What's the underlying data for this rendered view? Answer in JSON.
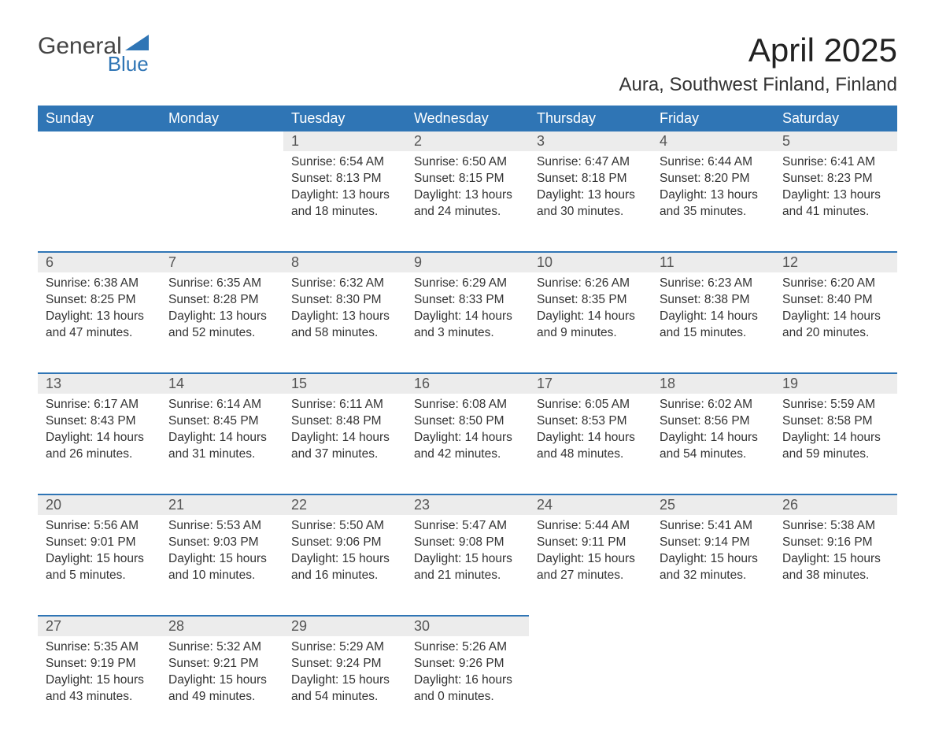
{
  "logo": {
    "text1": "General",
    "text2": "Blue"
  },
  "title": "April 2025",
  "location": "Aura, Southwest Finland, Finland",
  "colors": {
    "header_bg": "#2f75b5",
    "header_text": "#ffffff",
    "daynum_bg": "#ececec",
    "row_border": "#2f75b5",
    "body_text": "#333333",
    "logo_blue": "#2f75b5"
  },
  "day_headers": [
    "Sunday",
    "Monday",
    "Tuesday",
    "Wednesday",
    "Thursday",
    "Friday",
    "Saturday"
  ],
  "weeks": [
    [
      {
        "n": "",
        "lines": []
      },
      {
        "n": "",
        "lines": []
      },
      {
        "n": "1",
        "lines": [
          "Sunrise: 6:54 AM",
          "Sunset: 8:13 PM",
          "Daylight: 13 hours",
          "and 18 minutes."
        ]
      },
      {
        "n": "2",
        "lines": [
          "Sunrise: 6:50 AM",
          "Sunset: 8:15 PM",
          "Daylight: 13 hours",
          "and 24 minutes."
        ]
      },
      {
        "n": "3",
        "lines": [
          "Sunrise: 6:47 AM",
          "Sunset: 8:18 PM",
          "Daylight: 13 hours",
          "and 30 minutes."
        ]
      },
      {
        "n": "4",
        "lines": [
          "Sunrise: 6:44 AM",
          "Sunset: 8:20 PM",
          "Daylight: 13 hours",
          "and 35 minutes."
        ]
      },
      {
        "n": "5",
        "lines": [
          "Sunrise: 6:41 AM",
          "Sunset: 8:23 PM",
          "Daylight: 13 hours",
          "and 41 minutes."
        ]
      }
    ],
    [
      {
        "n": "6",
        "lines": [
          "Sunrise: 6:38 AM",
          "Sunset: 8:25 PM",
          "Daylight: 13 hours",
          "and 47 minutes."
        ]
      },
      {
        "n": "7",
        "lines": [
          "Sunrise: 6:35 AM",
          "Sunset: 8:28 PM",
          "Daylight: 13 hours",
          "and 52 minutes."
        ]
      },
      {
        "n": "8",
        "lines": [
          "Sunrise: 6:32 AM",
          "Sunset: 8:30 PM",
          "Daylight: 13 hours",
          "and 58 minutes."
        ]
      },
      {
        "n": "9",
        "lines": [
          "Sunrise: 6:29 AM",
          "Sunset: 8:33 PM",
          "Daylight: 14 hours",
          "and 3 minutes."
        ]
      },
      {
        "n": "10",
        "lines": [
          "Sunrise: 6:26 AM",
          "Sunset: 8:35 PM",
          "Daylight: 14 hours",
          "and 9 minutes."
        ]
      },
      {
        "n": "11",
        "lines": [
          "Sunrise: 6:23 AM",
          "Sunset: 8:38 PM",
          "Daylight: 14 hours",
          "and 15 minutes."
        ]
      },
      {
        "n": "12",
        "lines": [
          "Sunrise: 6:20 AM",
          "Sunset: 8:40 PM",
          "Daylight: 14 hours",
          "and 20 minutes."
        ]
      }
    ],
    [
      {
        "n": "13",
        "lines": [
          "Sunrise: 6:17 AM",
          "Sunset: 8:43 PM",
          "Daylight: 14 hours",
          "and 26 minutes."
        ]
      },
      {
        "n": "14",
        "lines": [
          "Sunrise: 6:14 AM",
          "Sunset: 8:45 PM",
          "Daylight: 14 hours",
          "and 31 minutes."
        ]
      },
      {
        "n": "15",
        "lines": [
          "Sunrise: 6:11 AM",
          "Sunset: 8:48 PM",
          "Daylight: 14 hours",
          "and 37 minutes."
        ]
      },
      {
        "n": "16",
        "lines": [
          "Sunrise: 6:08 AM",
          "Sunset: 8:50 PM",
          "Daylight: 14 hours",
          "and 42 minutes."
        ]
      },
      {
        "n": "17",
        "lines": [
          "Sunrise: 6:05 AM",
          "Sunset: 8:53 PM",
          "Daylight: 14 hours",
          "and 48 minutes."
        ]
      },
      {
        "n": "18",
        "lines": [
          "Sunrise: 6:02 AM",
          "Sunset: 8:56 PM",
          "Daylight: 14 hours",
          "and 54 minutes."
        ]
      },
      {
        "n": "19",
        "lines": [
          "Sunrise: 5:59 AM",
          "Sunset: 8:58 PM",
          "Daylight: 14 hours",
          "and 59 minutes."
        ]
      }
    ],
    [
      {
        "n": "20",
        "lines": [
          "Sunrise: 5:56 AM",
          "Sunset: 9:01 PM",
          "Daylight: 15 hours",
          "and 5 minutes."
        ]
      },
      {
        "n": "21",
        "lines": [
          "Sunrise: 5:53 AM",
          "Sunset: 9:03 PM",
          "Daylight: 15 hours",
          "and 10 minutes."
        ]
      },
      {
        "n": "22",
        "lines": [
          "Sunrise: 5:50 AM",
          "Sunset: 9:06 PM",
          "Daylight: 15 hours",
          "and 16 minutes."
        ]
      },
      {
        "n": "23",
        "lines": [
          "Sunrise: 5:47 AM",
          "Sunset: 9:08 PM",
          "Daylight: 15 hours",
          "and 21 minutes."
        ]
      },
      {
        "n": "24",
        "lines": [
          "Sunrise: 5:44 AM",
          "Sunset: 9:11 PM",
          "Daylight: 15 hours",
          "and 27 minutes."
        ]
      },
      {
        "n": "25",
        "lines": [
          "Sunrise: 5:41 AM",
          "Sunset: 9:14 PM",
          "Daylight: 15 hours",
          "and 32 minutes."
        ]
      },
      {
        "n": "26",
        "lines": [
          "Sunrise: 5:38 AM",
          "Sunset: 9:16 PM",
          "Daylight: 15 hours",
          "and 38 minutes."
        ]
      }
    ],
    [
      {
        "n": "27",
        "lines": [
          "Sunrise: 5:35 AM",
          "Sunset: 9:19 PM",
          "Daylight: 15 hours",
          "and 43 minutes."
        ]
      },
      {
        "n": "28",
        "lines": [
          "Sunrise: 5:32 AM",
          "Sunset: 9:21 PM",
          "Daylight: 15 hours",
          "and 49 minutes."
        ]
      },
      {
        "n": "29",
        "lines": [
          "Sunrise: 5:29 AM",
          "Sunset: 9:24 PM",
          "Daylight: 15 hours",
          "and 54 minutes."
        ]
      },
      {
        "n": "30",
        "lines": [
          "Sunrise: 5:26 AM",
          "Sunset: 9:26 PM",
          "Daylight: 16 hours",
          "and 0 minutes."
        ]
      },
      {
        "n": "",
        "lines": []
      },
      {
        "n": "",
        "lines": []
      },
      {
        "n": "",
        "lines": []
      }
    ]
  ]
}
